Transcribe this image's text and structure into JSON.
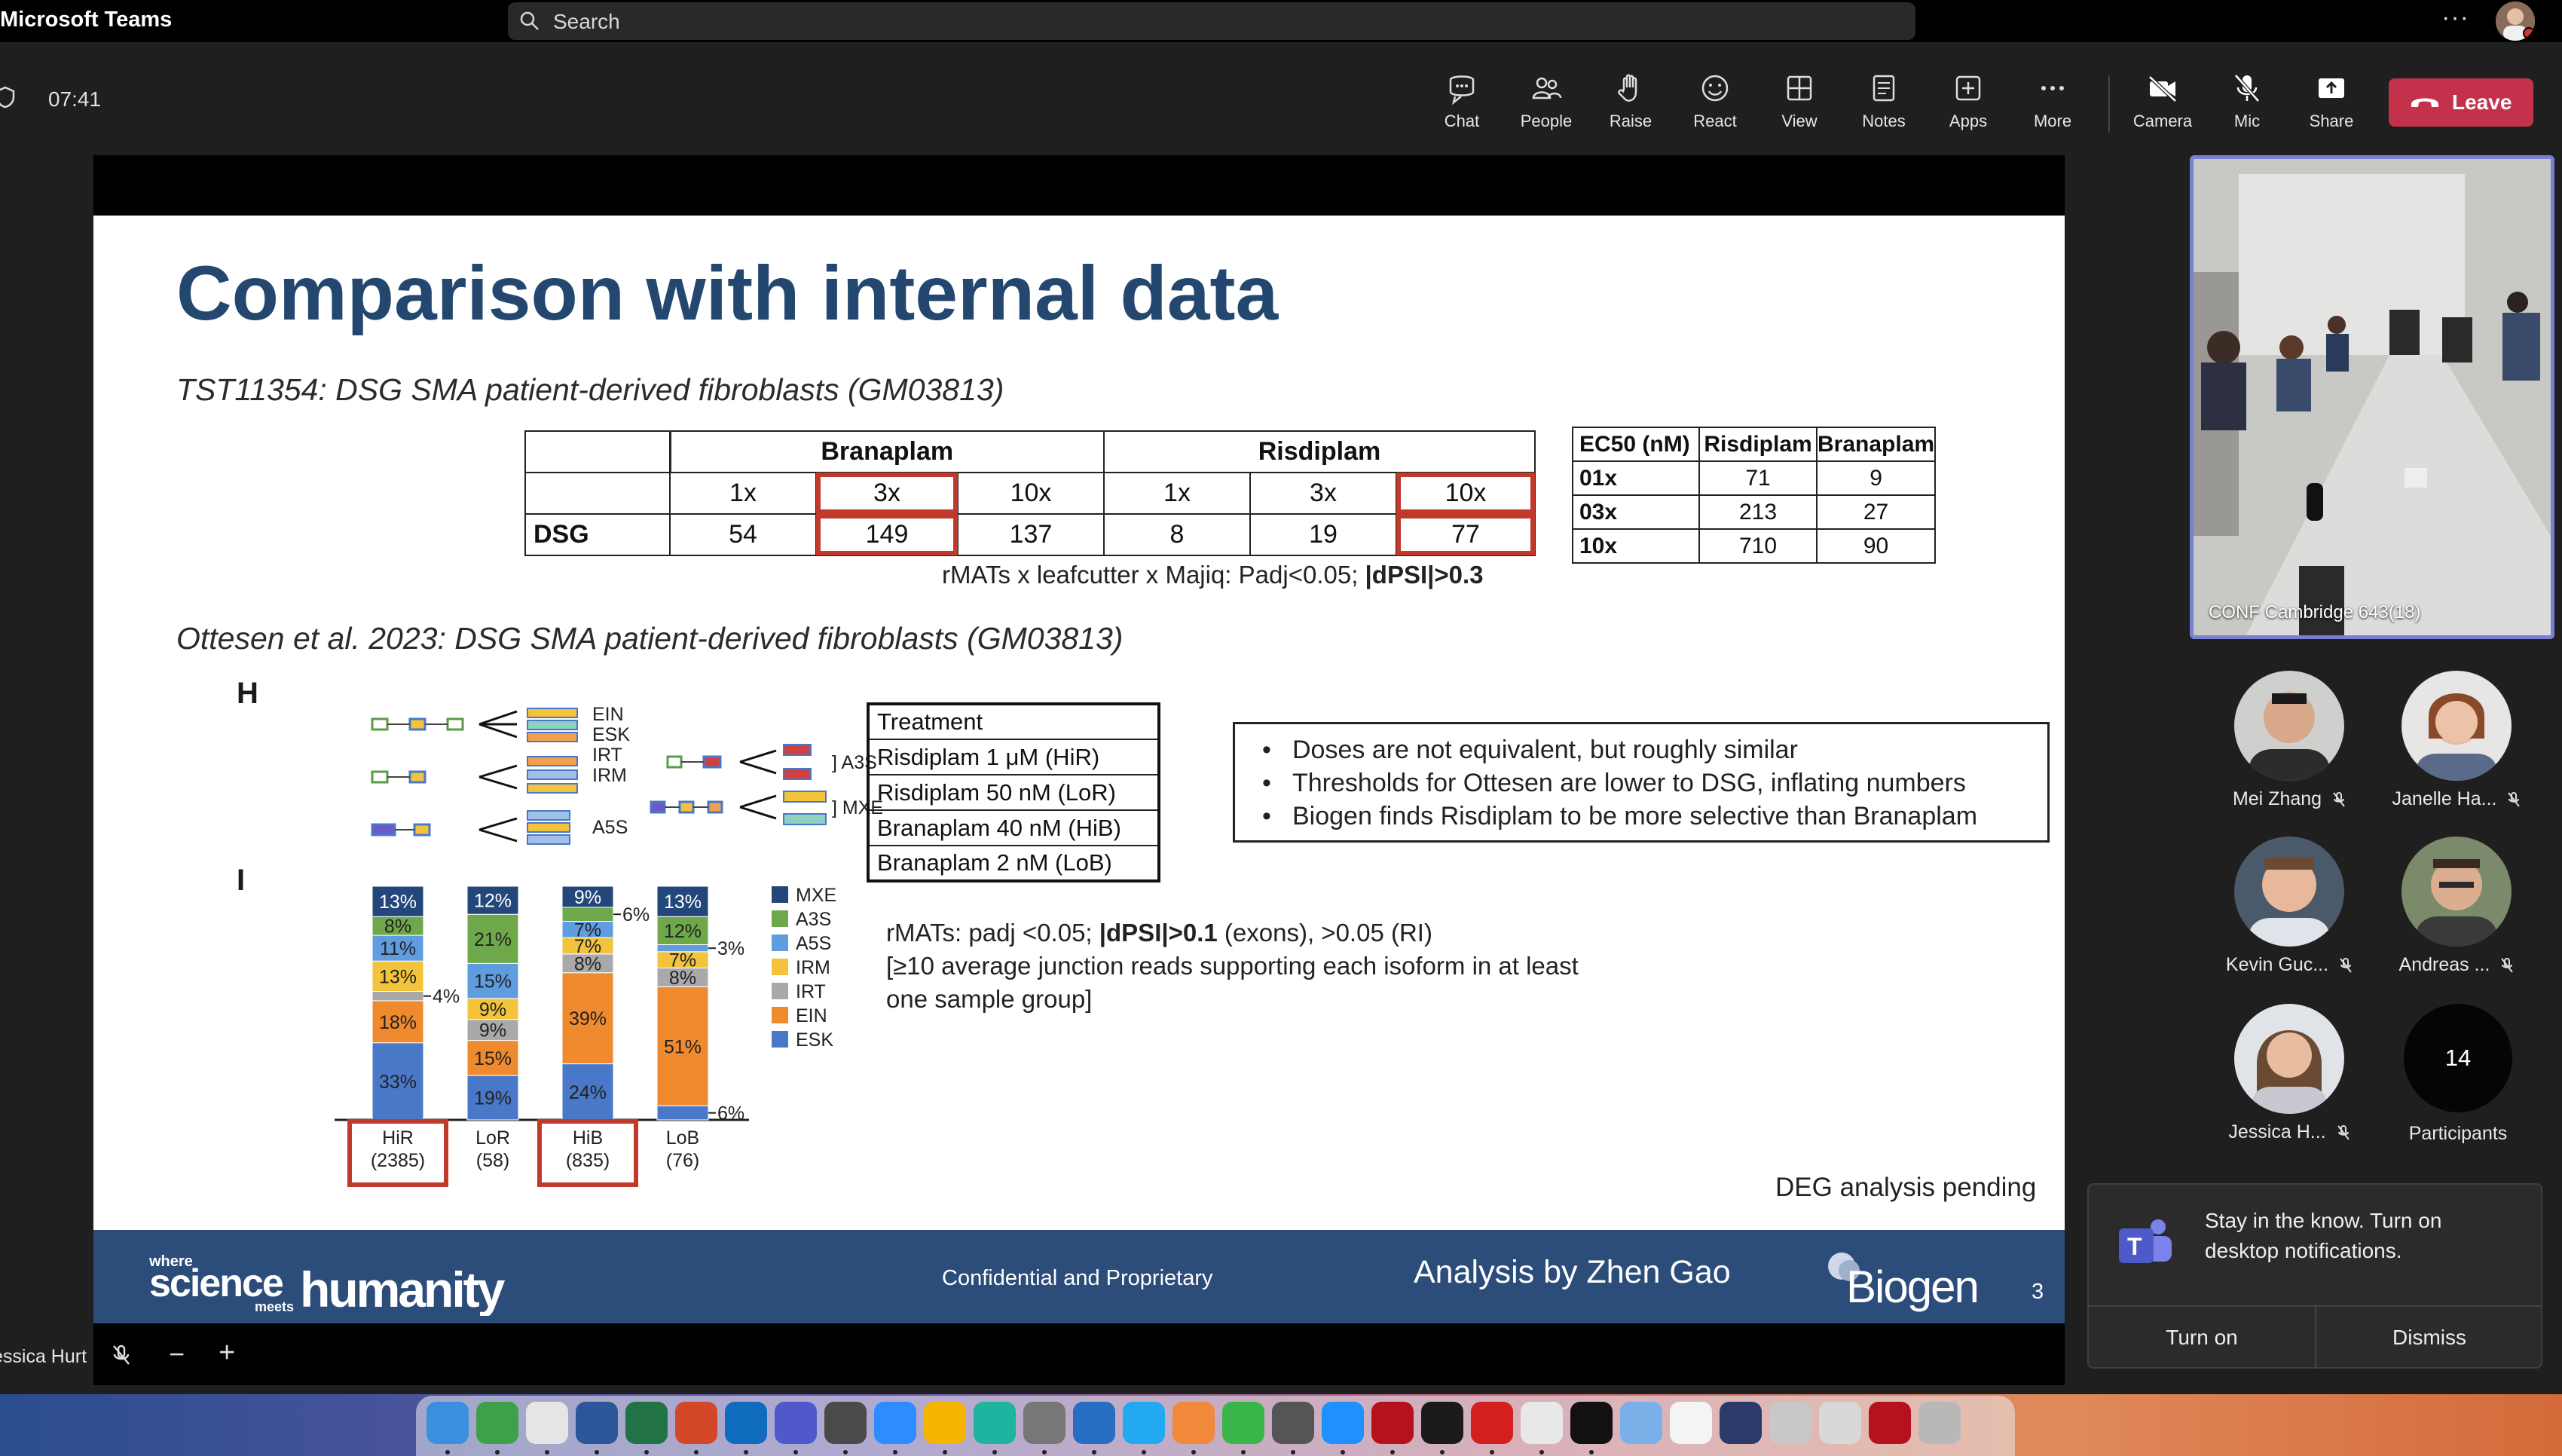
{
  "app": {
    "title": "Microsoft Teams",
    "search_placeholder": "Search"
  },
  "meeting": {
    "elapsed": "07:41"
  },
  "toolbar": {
    "items": [
      {
        "label": "Chat",
        "icon": "chat-icon"
      },
      {
        "label": "People",
        "icon": "people-icon"
      },
      {
        "label": "Raise",
        "icon": "raise-hand-icon"
      },
      {
        "label": "React",
        "icon": "react-icon"
      },
      {
        "label": "View",
        "icon": "view-icon"
      },
      {
        "label": "Notes",
        "icon": "notes-icon"
      },
      {
        "label": "Apps",
        "icon": "apps-icon"
      },
      {
        "label": "More",
        "icon": "more-icon"
      },
      {
        "label": "Camera",
        "icon": "camera-off-icon"
      },
      {
        "label": "Mic",
        "icon": "mic-off-icon"
      },
      {
        "label": "Share",
        "icon": "share-icon"
      }
    ],
    "leave_label": "Leave"
  },
  "slide": {
    "title": "Comparison with internal data",
    "subtitle1": "TST11354: DSG SMA patient-derived fibroblasts (GM03813)",
    "table1": {
      "groups": [
        "Branaplam",
        "Risdiplam"
      ],
      "doses": [
        "1x",
        "3x",
        "10x",
        "1x",
        "3x",
        "10x"
      ],
      "row_label": "DSG",
      "values": [
        "54",
        "149",
        "137",
        "8",
        "19",
        "77"
      ]
    },
    "table1_caption_plain": "rMATs x leafcutter x Majiq: Padj<0.05; ",
    "table1_caption_bold": "|dPSI|>0.3",
    "table2": {
      "headers": [
        "EC50 (nM)",
        "Risdiplam",
        "Branaplam"
      ],
      "rows": [
        [
          "01x",
          "71",
          "9"
        ],
        [
          "03x",
          "213",
          "27"
        ],
        [
          "10x",
          "710",
          "90"
        ]
      ]
    },
    "subtitle2": "Ottesen et al. 2023: DSG SMA patient-derived fibroblasts (GM03813)",
    "fig_h_label": "H",
    "fig_i_label": "I",
    "fig_h_labels": [
      "EIN",
      "ESK",
      "IRT",
      "IRM",
      "A5S",
      "A3S",
      "MXE"
    ],
    "treatment_table": [
      "Treatment",
      "Risdiplam 1 μM (HiR)",
      "Risdiplam 50 nM (LoR)",
      "Branaplam 40 nM (HiB)",
      "Branaplam 2 nM (LoB)"
    ],
    "notes": [
      "Doses are not equivalent, but roughly similar",
      "Thresholds for Ottesen are lower to DSG, inflating numbers",
      "Biogen finds Risdiplam to be more selective than Branaplam"
    ],
    "rmats_pre": "rMATs: padj <0.05; ",
    "rmats_bold": "|dPSI|>0.1",
    "rmats_post": " (exons), >0.05 (RI)",
    "rmats_line2": "[≥10 average junction reads supporting each isoform in at least one sample group]",
    "deg_note": "DEG analysis pending",
    "footer": {
      "logo_where": "where",
      "logo_science": "science",
      "logo_meets": "meets",
      "logo_humanity": "humanity",
      "confidential": "Confidential and Proprietary",
      "analysis_by": "Analysis by Zhen Gao",
      "brand": "Biogen",
      "page": "3"
    }
  },
  "chart_data": {
    "type": "bar",
    "stacked": true,
    "categories": [
      "HiR (2385)",
      "LoR (58)",
      "HiB (835)",
      "LoB (76)"
    ],
    "category_names": [
      "HiR",
      "LoR",
      "HiB",
      "LoB"
    ],
    "category_counts": [
      "(2385)",
      "(58)",
      "(835)",
      "(76)"
    ],
    "highlighted": [
      "HiR",
      "HiB"
    ],
    "series": [
      {
        "name": "ESK",
        "color": "#4a78c8",
        "values": [
          33,
          19,
          24,
          6
        ]
      },
      {
        "name": "EIN",
        "color": "#ef8a2e",
        "values": [
          18,
          15,
          39,
          51
        ]
      },
      {
        "name": "IRT",
        "color": "#a9a9a9",
        "values": [
          4,
          9,
          8,
          8
        ]
      },
      {
        "name": "IRM",
        "color": "#f3c33b",
        "values": [
          13,
          9,
          7,
          7
        ]
      },
      {
        "name": "A5S",
        "color": "#5f9de0",
        "values": [
          11,
          15,
          7,
          3
        ]
      },
      {
        "name": "A3S",
        "color": "#6fa84a",
        "values": [
          8,
          21,
          6,
          12
        ]
      },
      {
        "name": "MXE",
        "color": "#23477a",
        "values": [
          13,
          12,
          9,
          13
        ]
      }
    ],
    "segment_labels": [
      [
        "33%",
        "18%",
        "4%",
        "13%",
        "11%",
        "8%",
        "13%"
      ],
      [
        "19%",
        "15%",
        "9%",
        "9%",
        "15%",
        "21%",
        "12%"
      ],
      [
        "24%",
        "39%",
        "8%",
        "7%",
        "7%",
        "6%",
        "9%"
      ],
      [
        "6%",
        "51%",
        "8%",
        "7%",
        "3%",
        "12%",
        "13%"
      ]
    ],
    "legend_order": [
      "MXE",
      "A3S",
      "A5S",
      "IRM",
      "IRT",
      "EIN",
      "ESK"
    ],
    "legend_position": "right"
  },
  "participants": {
    "room": {
      "name": "CONF Cambridge 643(18)"
    },
    "people": [
      {
        "name": "Mei Zhang",
        "muted": true
      },
      {
        "name": "Janelle Ha...",
        "muted": true
      },
      {
        "name": "Kevin Guc...",
        "muted": true
      },
      {
        "name": "Andreas ...",
        "muted": true
      },
      {
        "name": "Jessica H...",
        "muted": true
      }
    ],
    "count": "14",
    "count_label": "Participants"
  },
  "toast": {
    "message": "Stay in the know. Turn on desktop notifications.",
    "primary": "Turn on",
    "secondary": "Dismiss"
  },
  "self_view": {
    "name": "essica Hurt"
  },
  "colors": {
    "accent": "#7a7fd6",
    "leave": "#c4314b",
    "slide_title": "#23476e",
    "footer": "#2c4d7a",
    "highlight_box": "#c0392b"
  },
  "dock_apps": [
    "finder-icon",
    "downloads-icon",
    "launchpad-icon",
    "word-icon",
    "excel-icon",
    "powerpoint-icon",
    "outlook-icon",
    "teams-icon",
    "igv-icon",
    "zoom-icon",
    "chrome-icon",
    "edge-icon",
    "settings-icon",
    "r-icon",
    "vscode-icon",
    "slack-icon",
    "spinner-icon",
    "calculator-icon",
    "ie-icon",
    "filezilla-icon",
    "terminal-icon",
    "acrobat-icon",
    "clock-icon",
    "x-icon",
    "folder-icon",
    "document-icon",
    "screen-icon",
    "preview-icon",
    "preview2-icon",
    "filezilla2-icon",
    "trash-icon"
  ]
}
